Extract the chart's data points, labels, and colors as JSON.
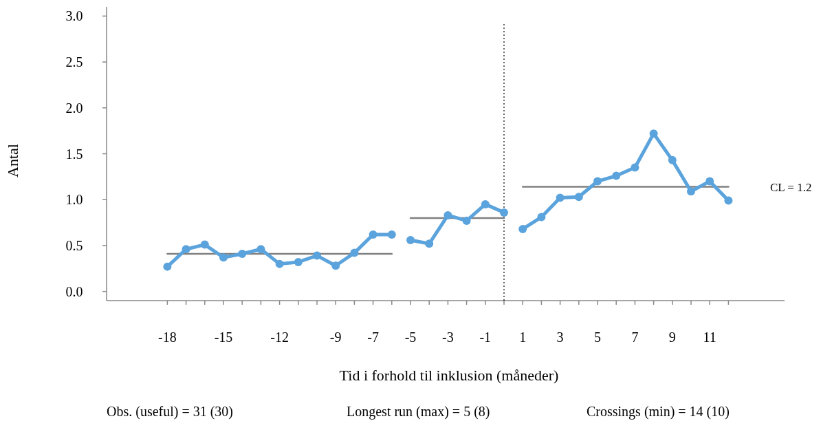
{
  "chart_data": {
    "type": "line",
    "xlabel": "Tid i forhold til inklusion (måneder)",
    "ylabel": "Antal",
    "xlim": [
      -21.25,
      15
    ],
    "ylim": [
      -0.1,
      3.1
    ],
    "xticks": [
      -18,
      {
        "value": -17,
        "label": null
      },
      {
        "value": -16,
        "label": null
      },
      -15,
      {
        "value": -14,
        "label": null
      },
      {
        "value": -13,
        "label": null
      },
      -12,
      {
        "value": -11,
        "label": null
      },
      {
        "value": -10,
        "label": null
      },
      -9,
      {
        "value": -8,
        "label": null
      },
      -7,
      {
        "value": -6,
        "label": null
      },
      -5,
      {
        "value": -4,
        "label": null
      },
      -3,
      {
        "value": -2,
        "label": null
      },
      -1,
      {
        "value": 0,
        "label": null
      },
      1,
      {
        "value": 2,
        "label": null
      },
      3,
      {
        "value": 4,
        "label": null
      },
      5,
      {
        "value": 6,
        "label": null
      },
      7,
      {
        "value": 8,
        "label": null
      },
      9,
      {
        "value": 10,
        "label": null
      },
      11,
      {
        "value": 12,
        "label": null
      }
    ],
    "yticks": [
      {
        "value": 0,
        "label": "0.0"
      },
      {
        "value": 0.5,
        "label": "0.5"
      },
      {
        "value": 1,
        "label": "1.0"
      },
      {
        "value": 1.5,
        "label": "1.5"
      },
      {
        "value": 2,
        "label": "2.0"
      },
      {
        "value": 2.5,
        "label": "2.5"
      },
      {
        "value": 3,
        "label": "3.0"
      }
    ],
    "marker": "circle",
    "line_style": "solid",
    "series": [
      {
        "color": "#5ba3dc",
        "x": [
          -18,
          -17,
          -16,
          -15,
          -14,
          -13,
          -12,
          -11,
          -10,
          -9,
          -8,
          -7,
          -6
        ],
        "values": [
          0.27,
          0.46,
          0.51,
          0.37,
          0.41,
          0.46,
          0.3,
          0.32,
          0.39,
          0.28,
          0.42,
          0.62,
          0.62
        ]
      },
      {
        "color": "#5ba3dc",
        "x": [
          -5,
          -4,
          -3,
          -2,
          -1,
          0
        ],
        "values": [
          0.56,
          0.52,
          0.83,
          0.77,
          0.95,
          0.86
        ]
      },
      {
        "color": "#5ba3dc",
        "x": [
          1,
          2,
          3,
          4,
          5,
          6,
          7,
          8,
          9,
          10,
          11,
          12
        ],
        "values": [
          0.68,
          0.81,
          1.02,
          1.03,
          1.2,
          1.26,
          1.35,
          1.72,
          1.43,
          1.09,
          1.2,
          0.99
        ]
      },
      {
        "color": "#808080",
        "marker": "none",
        "x": [
          -18,
          -6
        ],
        "values": [
          0.41,
          0.41
        ]
      },
      {
        "color": "#808080",
        "marker": "none",
        "x": [
          -5,
          0
        ],
        "values": [
          0.8,
          0.8
        ]
      },
      {
        "color": "#808080",
        "marker": "none",
        "x": [
          1,
          12
        ],
        "values": [
          1.14,
          1.14
        ]
      }
    ],
    "ref_lines": [
      {
        "axis": "x",
        "value": 0,
        "color": "#000000",
        "line_style": "dotted"
      }
    ],
    "annotations": [
      "CL = 1.2",
      "Obs. (useful) = 31 (30)",
      "Longest run (max) = 5 (8)",
      "Crossings (min) = 14 (10)"
    ]
  }
}
